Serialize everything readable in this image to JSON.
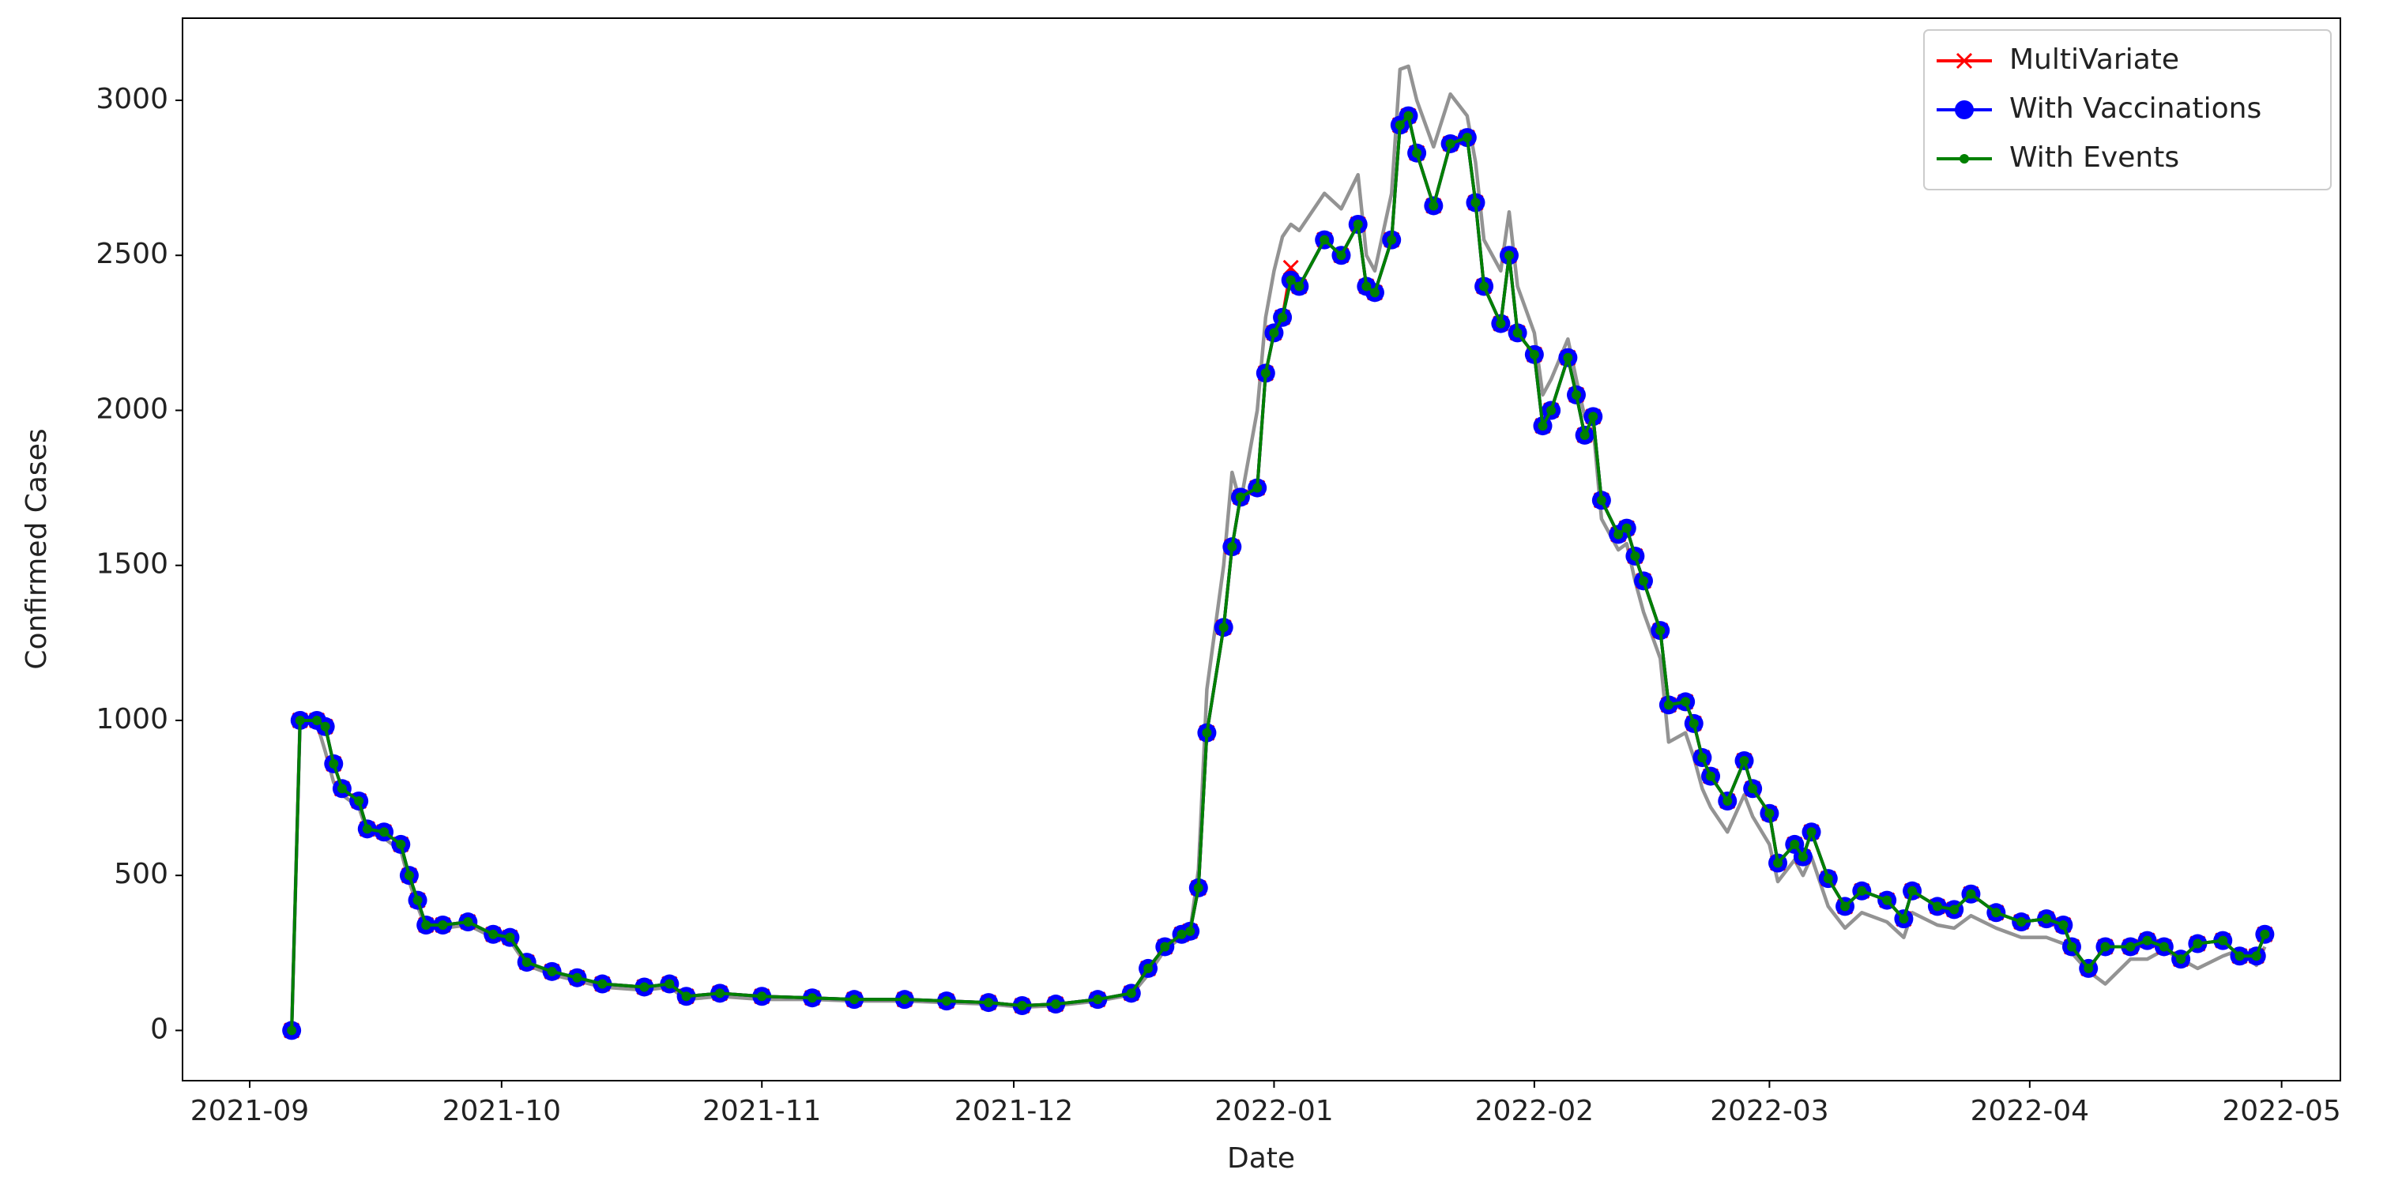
{
  "chart_data": {
    "type": "line",
    "xlabel": "Date",
    "ylabel": "Confirmed Cases",
    "x": [
      18876,
      18877,
      18879,
      18880,
      18881,
      18882,
      18884,
      18885,
      18887,
      18889,
      18890,
      18891,
      18892,
      18894,
      18897,
      18900,
      18902,
      18904,
      18907,
      18910,
      18913,
      18918,
      18921,
      18923,
      18927,
      18932,
      18938,
      18943,
      18949,
      18954,
      18959,
      18963,
      18967,
      18972,
      18976,
      18978,
      18980,
      18982,
      18983,
      18984,
      18985,
      18987,
      18988,
      18989,
      18991,
      18992,
      18993,
      18994,
      18995,
      18996,
      18999,
      19001,
      19003,
      19004,
      19005,
      19007,
      19008,
      19009,
      19010,
      19012,
      19014,
      19016,
      19017,
      19018,
      19020,
      19021,
      19022,
      19024,
      19025,
      19026,
      19028,
      19029,
      19030,
      19031,
      19032,
      19034,
      19035,
      19036,
      19037,
      19039,
      19040,
      19042,
      19043,
      19044,
      19045,
      19047,
      19049,
      19050,
      19052,
      19053,
      19055,
      19056,
      19057,
      19059,
      19061,
      19063,
      19066,
      19068,
      19069,
      19072,
      19074,
      19076,
      19079,
      19082,
      19085,
      19087,
      19088,
      19090,
      19092,
      19095,
      19097,
      19099,
      19101,
      19103,
      19106,
      19108,
      19110,
      19111
    ],
    "series": [
      {
        "color": "#808080",
        "values": [
          0,
          1000,
          990,
          900,
          800,
          760,
          720,
          640,
          620,
          580,
          480,
          400,
          330,
          330,
          340,
          300,
          290,
          210,
          180,
          160,
          140,
          130,
          140,
          100,
          110,
          100,
          100,
          95,
          95,
          90,
          85,
          75,
          80,
          95,
          115,
          180,
          260,
          300,
          320,
          520,
          1100,
          1500,
          1800,
          1700,
          2000,
          2300,
          2450,
          2560,
          2600,
          2580,
          2700,
          2650,
          2760,
          2500,
          2450,
          2700,
          3100,
          3110,
          3000,
          2850,
          3020,
          2950,
          2800,
          2550,
          2450,
          2640,
          2400,
          2250,
          2050,
          2100,
          2230,
          2100,
          1980,
          1950,
          1650,
          1550,
          1570,
          1450,
          1350,
          1200,
          930,
          960,
          880,
          780,
          720,
          640,
          760,
          690,
          600,
          480,
          550,
          500,
          560,
          400,
          330,
          380,
          350,
          300,
          380,
          340,
          330,
          370,
          330,
          300,
          300,
          280,
          250,
          190,
          150,
          230,
          230,
          260,
          230,
          200,
          240,
          260,
          210,
          270
        ]
      },
      {
        "name": "MultiVariate",
        "color": "#ff0000",
        "marker": "x",
        "values": [
          0,
          1000,
          1000,
          980,
          860,
          780,
          740,
          650,
          640,
          600,
          500,
          420,
          340,
          340,
          350,
          310,
          300,
          220,
          190,
          170,
          150,
          140,
          150,
          110,
          120,
          110,
          105,
          100,
          100,
          95,
          90,
          80,
          85,
          100,
          120,
          200,
          270,
          310,
          320,
          460,
          960,
          1300,
          1560,
          1720,
          1750,
          2120,
          2250,
          2300,
          2460,
          2400,
          2550,
          2500,
          2600,
          2400,
          2380,
          2550,
          2920,
          2950,
          2830,
          2660,
          2860,
          2880,
          2670,
          2400,
          2280,
          2500,
          2250,
          2180,
          1950,
          2000,
          2170,
          2050,
          1920,
          1980,
          1710,
          1600,
          1620,
          1530,
          1450,
          1290,
          1050,
          1060,
          990,
          880,
          820,
          740,
          870,
          780,
          700,
          540,
          600,
          560,
          640,
          490,
          400,
          450,
          420,
          360,
          450,
          400,
          390,
          440,
          380,
          350,
          360,
          340,
          270,
          200,
          270,
          270,
          290,
          270,
          230,
          280,
          290,
          240,
          240,
          310
        ]
      },
      {
        "name": "With Vaccinations",
        "color": "#0000ff",
        "marker": "circle",
        "values": [
          0,
          1000,
          1000,
          980,
          860,
          780,
          740,
          650,
          640,
          600,
          500,
          420,
          340,
          340,
          350,
          310,
          300,
          220,
          190,
          170,
          150,
          140,
          150,
          110,
          120,
          110,
          105,
          100,
          100,
          95,
          90,
          80,
          85,
          100,
          120,
          200,
          270,
          310,
          320,
          460,
          960,
          1300,
          1560,
          1720,
          1750,
          2120,
          2250,
          2300,
          2420,
          2400,
          2550,
          2500,
          2600,
          2400,
          2380,
          2550,
          2920,
          2950,
          2830,
          2660,
          2860,
          2880,
          2670,
          2400,
          2280,
          2500,
          2250,
          2180,
          1950,
          2000,
          2170,
          2050,
          1920,
          1980,
          1710,
          1600,
          1620,
          1530,
          1450,
          1290,
          1050,
          1060,
          990,
          880,
          820,
          740,
          870,
          780,
          700,
          540,
          600,
          560,
          640,
          490,
          400,
          450,
          420,
          360,
          450,
          400,
          390,
          440,
          380,
          350,
          360,
          340,
          270,
          200,
          270,
          270,
          290,
          270,
          230,
          280,
          290,
          240,
          240,
          310
        ]
      },
      {
        "name": "With Events",
        "color": "#008000",
        "marker": "dot",
        "values": [
          0,
          1000,
          1000,
          980,
          860,
          780,
          740,
          650,
          640,
          600,
          500,
          420,
          340,
          340,
          350,
          310,
          300,
          220,
          190,
          170,
          150,
          140,
          150,
          110,
          120,
          110,
          105,
          100,
          100,
          95,
          90,
          80,
          85,
          100,
          120,
          200,
          270,
          310,
          320,
          460,
          960,
          1300,
          1560,
          1720,
          1750,
          2120,
          2250,
          2300,
          2420,
          2400,
          2550,
          2500,
          2600,
          2400,
          2380,
          2550,
          2920,
          2950,
          2830,
          2660,
          2860,
          2880,
          2670,
          2400,
          2280,
          2500,
          2250,
          2180,
          1950,
          2000,
          2170,
          2050,
          1920,
          1980,
          1710,
          1600,
          1620,
          1530,
          1450,
          1290,
          1050,
          1060,
          990,
          880,
          820,
          740,
          870,
          780,
          700,
          540,
          600,
          560,
          640,
          490,
          400,
          450,
          420,
          360,
          450,
          400,
          390,
          440,
          380,
          350,
          360,
          340,
          270,
          200,
          270,
          270,
          290,
          270,
          230,
          280,
          290,
          240,
          240,
          310
        ]
      }
    ],
    "xlim": [
      18863,
      19120
    ],
    "xticks": [
      {
        "value": 18871,
        "label": "2021-09"
      },
      {
        "value": 18901,
        "label": "2021-10"
      },
      {
        "value": 18932,
        "label": "2021-11"
      },
      {
        "value": 18962,
        "label": "2021-12"
      },
      {
        "value": 18993,
        "label": "2022-01"
      },
      {
        "value": 19024,
        "label": "2022-02"
      },
      {
        "value": 19052,
        "label": "2022-03"
      },
      {
        "value": 19083,
        "label": "2022-04"
      },
      {
        "value": 19113,
        "label": "2022-05"
      }
    ],
    "ylim": [
      -162,
      3265
    ],
    "yticks": [
      0,
      500,
      1000,
      1500,
      2000,
      2500,
      3000
    ],
    "grid": false,
    "legend": "upper right"
  }
}
